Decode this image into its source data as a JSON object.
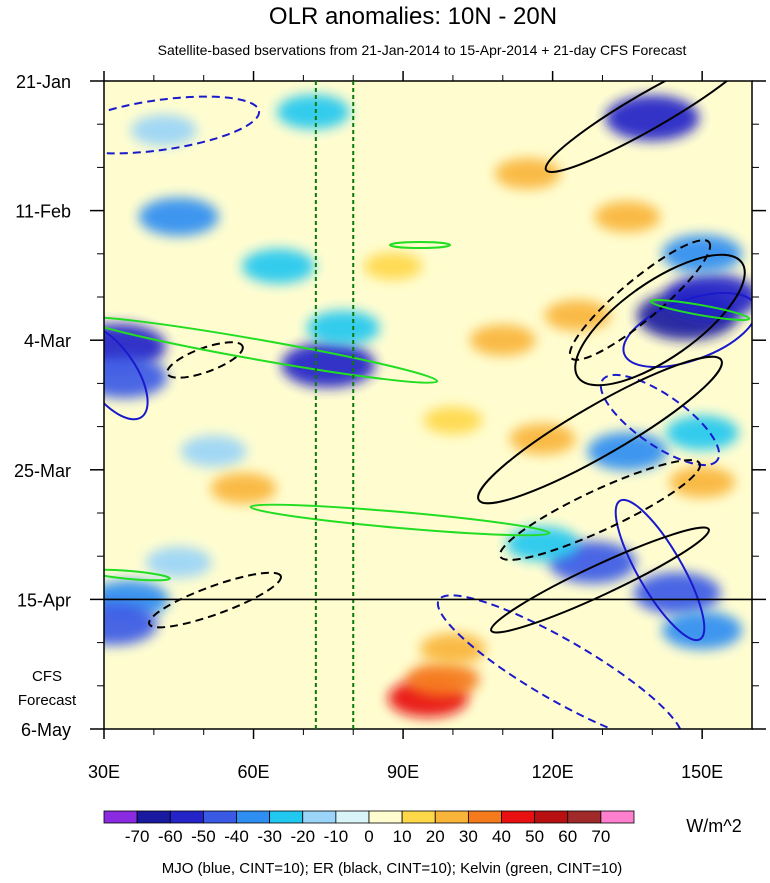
{
  "chart_data": {
    "type": "heatmap",
    "title": "OLR anomalies: 10N - 20N",
    "subtitle": "Satellite-based bservations from 21-Jan-2014 to 15-Apr-2014 + 21-day CFS Forecast",
    "x_range": [
      30,
      160
    ],
    "x_ticks": [
      {
        "value": 30,
        "label": "30E"
      },
      {
        "value": 60,
        "label": "60E"
      },
      {
        "value": 90,
        "label": "90E"
      },
      {
        "value": 120,
        "label": "120E"
      },
      {
        "value": 150,
        "label": "150E"
      }
    ],
    "y_range_days": [
      0,
      105
    ],
    "y_ticks": [
      {
        "day": 0,
        "label": "21-Jan"
      },
      {
        "day": 21,
        "label": "11-Feb"
      },
      {
        "day": 42,
        "label": "4-Mar"
      },
      {
        "day": 63,
        "label": "25-Mar"
      },
      {
        "day": 84,
        "label": "15-Apr"
      },
      {
        "day": 105,
        "label": "6-May"
      }
    ],
    "forecast_start_day": 84,
    "forecast_label": [
      "CFS",
      "Forecast"
    ],
    "reference_longitudes": [
      72.5,
      80
    ],
    "colorbar": {
      "unit": "W/m^2",
      "levels": [
        -70,
        -60,
        -50,
        -40,
        -30,
        -20,
        -10,
        0,
        10,
        20,
        30,
        40,
        50,
        60,
        70
      ],
      "labels": [
        "-70",
        "-60",
        "-50",
        "-40",
        "-30",
        "-20",
        "-10",
        "0",
        "10",
        "20",
        "30",
        "40",
        "50",
        "60",
        "70"
      ],
      "colors": [
        "#8a2be2",
        "#1a1aa0",
        "#2424c8",
        "#3a5ae6",
        "#2f8ef2",
        "#20c8f0",
        "#9ad4f8",
        "#d8f4f8",
        "#fffdd0",
        "#ffd84a",
        "#f9b53a",
        "#f57a1c",
        "#e81010",
        "#b81010",
        "#a02a2a",
        "#ff7fcf"
      ]
    },
    "anomaly_blobs": [
      {
        "lon": 33,
        "day": 43,
        "value": -60
      },
      {
        "lon": 34,
        "day": 48,
        "value": -50
      },
      {
        "lon": 45,
        "day": 22,
        "value": -40
      },
      {
        "lon": 42,
        "day": 8,
        "value": -20
      },
      {
        "lon": 65,
        "day": 30,
        "value": -30
      },
      {
        "lon": 75,
        "day": 46,
        "value": -60
      },
      {
        "lon": 78,
        "day": 40,
        "value": -30
      },
      {
        "lon": 72,
        "day": 5,
        "value": -30
      },
      {
        "lon": 52,
        "day": 60,
        "value": -20
      },
      {
        "lon": 35,
        "day": 84,
        "value": -40
      },
      {
        "lon": 32,
        "day": 88,
        "value": -50
      },
      {
        "lon": 45,
        "day": 78,
        "value": -20
      },
      {
        "lon": 147,
        "day": 38,
        "value": -70
      },
      {
        "lon": 152,
        "day": 35,
        "value": -60
      },
      {
        "lon": 140,
        "day": 6,
        "value": -60
      },
      {
        "lon": 150,
        "day": 28,
        "value": -40
      },
      {
        "lon": 128,
        "day": 78,
        "value": -50
      },
      {
        "lon": 145,
        "day": 83,
        "value": -50
      },
      {
        "lon": 150,
        "day": 89,
        "value": -40
      },
      {
        "lon": 135,
        "day": 60,
        "value": -40
      },
      {
        "lon": 150,
        "day": 57,
        "value": -30
      },
      {
        "lon": 118,
        "day": 75,
        "value": -30
      },
      {
        "lon": 95,
        "day": 100,
        "value": 40
      },
      {
        "lon": 98,
        "day": 97,
        "value": 30
      },
      {
        "lon": 100,
        "day": 92,
        "value": 20
      },
      {
        "lon": 115,
        "day": 15,
        "value": 20
      },
      {
        "lon": 125,
        "day": 38,
        "value": 20
      },
      {
        "lon": 110,
        "day": 42,
        "value": 20
      },
      {
        "lon": 118,
        "day": 58,
        "value": 20
      },
      {
        "lon": 135,
        "day": 22,
        "value": 20
      },
      {
        "lon": 150,
        "day": 65,
        "value": 20
      },
      {
        "lon": 58,
        "day": 66,
        "value": 20
      },
      {
        "lon": 100,
        "day": 55,
        "value": 10
      },
      {
        "lon": 88,
        "day": 30,
        "value": 10
      }
    ],
    "wave_filters": {
      "mjo": {
        "label": "MJO (blue, CINT=10)",
        "color": "#1a1acc"
      },
      "er": {
        "label": "ER (black, CINT=10)",
        "color": "#000000"
      },
      "kelvin": {
        "label": "Kelvin (green, CINT=10)",
        "color": "#22dd22"
      },
      "footer": "MJO (blue, CINT=10); ER (black, CINT=10); Kelvin (green, CINT=10)"
    }
  }
}
